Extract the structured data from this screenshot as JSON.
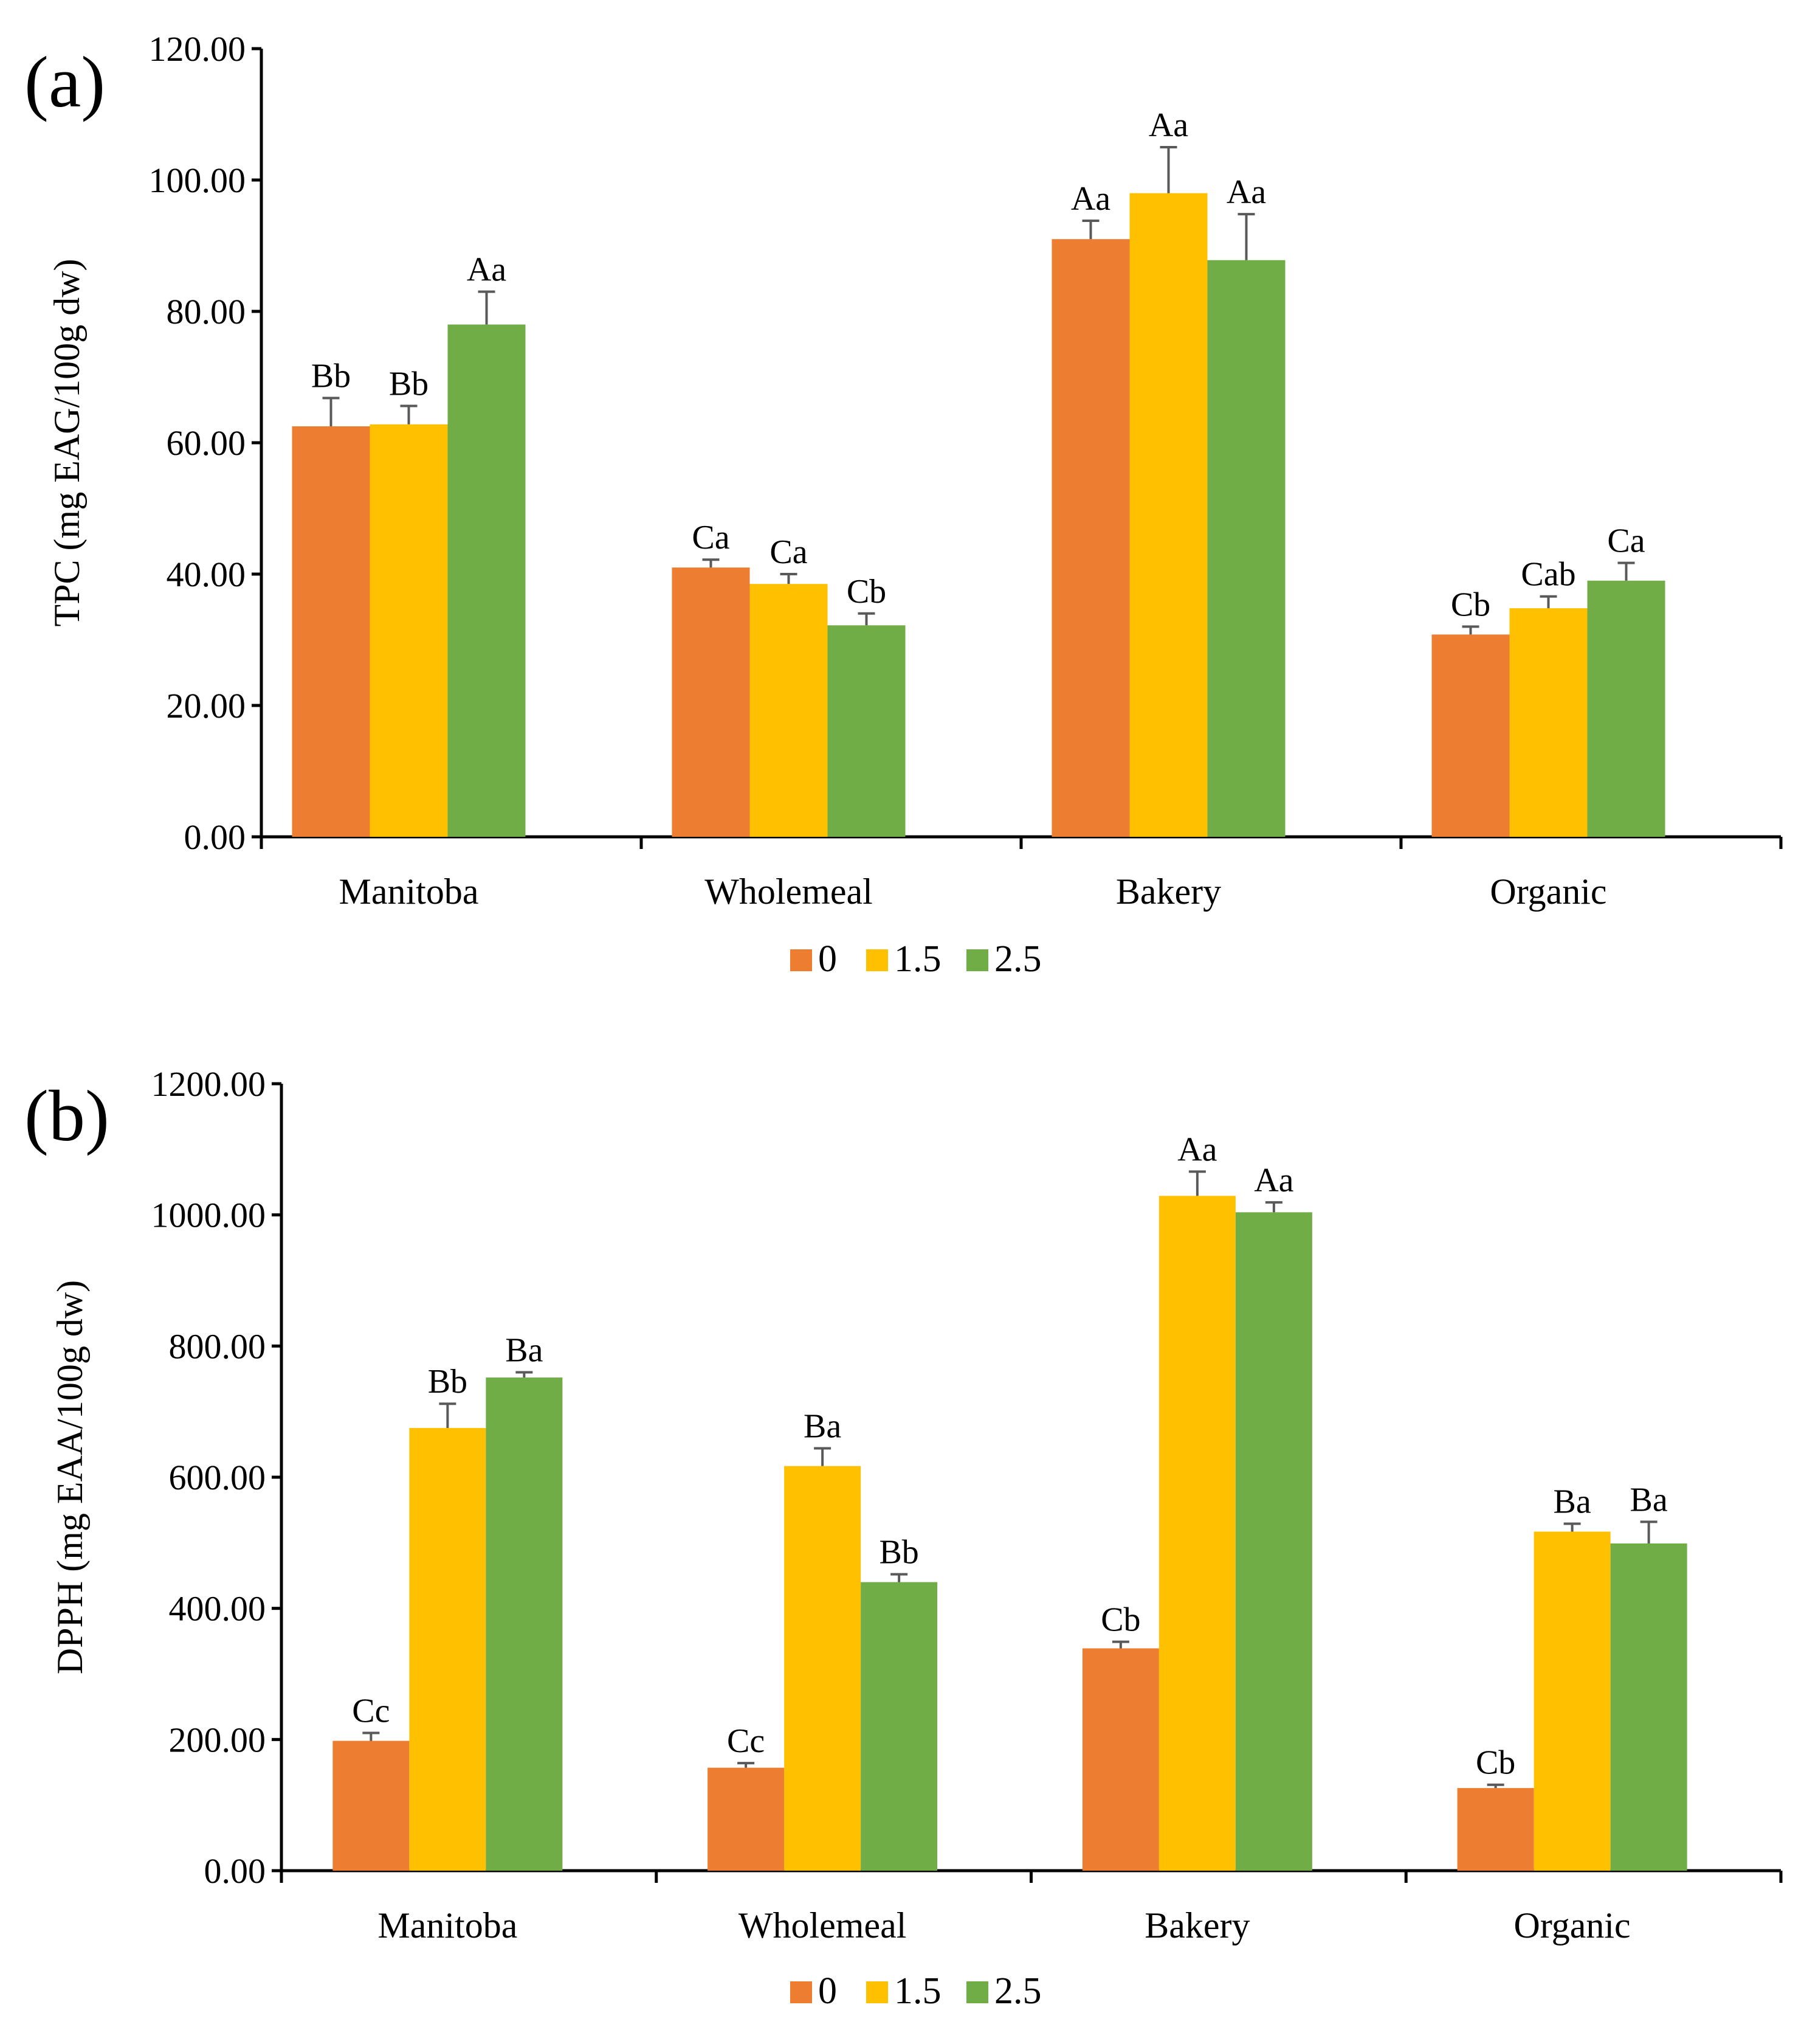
{
  "colors": {
    "0": "#ED7D31",
    "1.5": "#FFC000",
    "2.5": "#70AD47",
    "axis": "#000000",
    "error": "#595959"
  },
  "chart_data": [
    {
      "id": "a",
      "panel_label": "(a)",
      "type": "bar",
      "ylabel": "TPC (mg EAG/100g dw)",
      "ylim": [
        0,
        120
      ],
      "yticks": [
        "0.00",
        "20.00",
        "40.00",
        "60.00",
        "80.00",
        "100.00",
        "120.00"
      ],
      "categories": [
        "Manitoba",
        "Wholemeal",
        "Bakery",
        "Organic"
      ],
      "series": [
        {
          "name": "0",
          "values": [
            62.5,
            41.0,
            91.0,
            30.8
          ],
          "errors": [
            4.3,
            1.2,
            2.8,
            1.2
          ],
          "labels": [
            "Bb",
            "Ca",
            "Aa",
            "Cb"
          ]
        },
        {
          "name": "1.5",
          "values": [
            62.8,
            38.5,
            98.0,
            34.8
          ],
          "errors": [
            2.8,
            1.5,
            7.0,
            1.8
          ],
          "labels": [
            "Bb",
            "Ca",
            "Aa",
            "Cab"
          ]
        },
        {
          "name": "2.5",
          "values": [
            78.0,
            32.2,
            87.8,
            39.0
          ],
          "errors": [
            5.0,
            1.8,
            7.0,
            2.7
          ],
          "labels": [
            "Aa",
            "Cb",
            "Aa",
            "Ca"
          ]
        }
      ],
      "legend": [
        "0",
        "1.5",
        "2.5"
      ]
    },
    {
      "id": "b",
      "panel_label": "(b)",
      "type": "bar",
      "ylabel": "DPPH  (mg EAA/100g dw)",
      "ylim": [
        0,
        1200
      ],
      "yticks": [
        "0.00",
        "200.00",
        "400.00",
        "600.00",
        "800.00",
        "1000.00",
        "1200.00"
      ],
      "categories": [
        "Manitoba",
        "Wholemeal",
        "Bakery",
        "Organic"
      ],
      "series": [
        {
          "name": "0",
          "values": [
            198,
            157,
            339,
            126
          ],
          "errors": [
            12,
            7,
            10,
            5
          ],
          "labels": [
            "Cc",
            "Cc",
            "Cb",
            "Cb"
          ]
        },
        {
          "name": "1.5",
          "values": [
            675,
            617,
            1029,
            517
          ],
          "errors": [
            37,
            27,
            37,
            12
          ],
          "labels": [
            "Bb",
            "Ba",
            "Aa",
            "Ba"
          ]
        },
        {
          "name": "2.5",
          "values": [
            752,
            440,
            1004,
            499
          ],
          "errors": [
            8,
            12,
            15,
            33
          ],
          "labels": [
            "Ba",
            "Bb",
            "Aa",
            "Ba"
          ]
        }
      ],
      "legend": [
        "0",
        "1.5",
        "2.5"
      ]
    }
  ]
}
